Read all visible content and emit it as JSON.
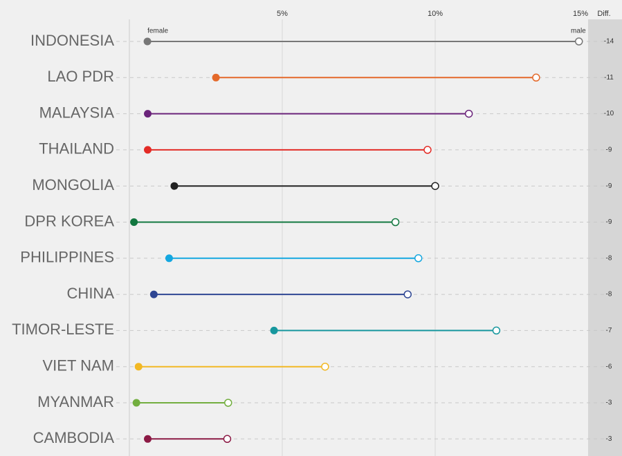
{
  "chart_data": {
    "type": "dumbbell",
    "categories": [
      "INDONESIA",
      "LAO PDR",
      "MALAYSIA",
      "THAILAND",
      "MONGOLIA",
      "DPR KOREA",
      "PHILIPPINES",
      "CHINA",
      "TIMOR-LESTE",
      "VIET NAM",
      "MYANMAR",
      "CAMBODIA"
    ],
    "colors": [
      "#777777",
      "#e4692a",
      "#6a237a",
      "#e32b26",
      "#222222",
      "#12773f",
      "#14a7e0",
      "#2e4693",
      "#17979e",
      "#f2b824",
      "#72ae3f",
      "#8c1a45"
    ],
    "series": [
      {
        "name": "female",
        "values": [
          0.59,
          2.83,
          0.6,
          0.6,
          1.47,
          0.15,
          1.3,
          0.8,
          4.73,
          0.3,
          0.23,
          0.6
        ]
      },
      {
        "name": "male",
        "values": [
          14.7,
          13.3,
          11.1,
          9.75,
          10.0,
          8.7,
          9.45,
          9.1,
          12.0,
          6.4,
          3.23,
          3.2
        ]
      }
    ],
    "diff_label": "Diff.",
    "diff": [
      -14,
      -11,
      -10,
      -9,
      -9,
      -9,
      -8,
      -8,
      -7,
      -6,
      -3,
      -3
    ],
    "xlim": [
      0,
      15
    ],
    "xticks": [
      {
        "value": 5,
        "label": "5%"
      },
      {
        "value": 10,
        "label": "10%"
      },
      {
        "value": 15,
        "label": "15%"
      }
    ],
    "grid": true
  }
}
